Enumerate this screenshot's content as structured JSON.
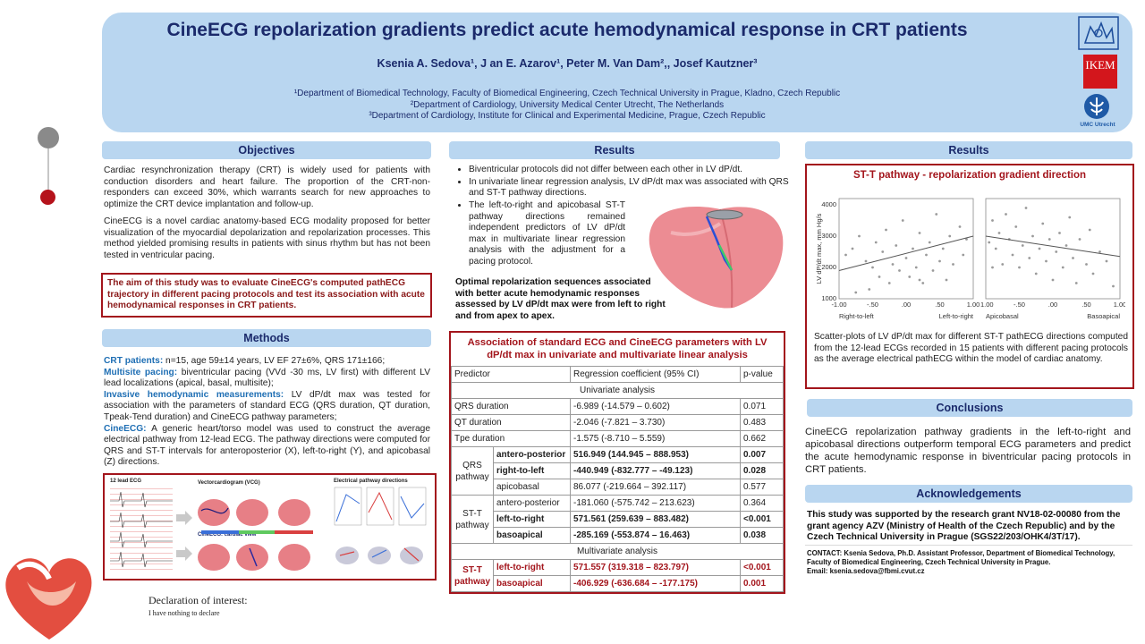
{
  "header": {
    "title": "CineECG repolarization gradients predict acute hemodynamical response in CRT patients",
    "authors": "Ksenia A. Sedova¹, J an E. Azarov¹,   Peter M. Van Dam²,, Josef Kautzner³",
    "affiliations": [
      "¹Department of Biomedical Technology, Faculty of Biomedical Engineering, Czech Technical University in Prague, Kladno, Czech Republic",
      "²Department of Cardiology, University Medical Center Utrecht, The Netherlands",
      "³Department of Cardiology, Institute for Clinical and Experimental Medicine, Prague, Czech Republic"
    ],
    "logos": {
      "ikem": "IKEM",
      "umc": "UMC Utrecht",
      "ctu_icon": "lion-crest-icon",
      "umc_icon": "umc-tree-icon"
    }
  },
  "objectives": {
    "heading": "Objectives",
    "p1": "Cardiac resynchronization therapy (CRT) is widely used for patients with conduction disorders and heart failure. The proportion of the CRT-non-responders can exceed 30%, which warrants search for new approaches to optimize the CRT device implantation and follow-up.",
    "p2": "CineECG is a novel cardiac anatomy-based ECG modality proposed for better visualization of the myocardial depolarization and repolarization processes. This method yielded promising results in patients with sinus rhythm but has not been tested in ventricular pacing.",
    "aim": "The aim of this study was to evaluate CineECG's computed pathECG trajectory in different pacing protocols and test its association with acute hemodynamical responses in CRT patients."
  },
  "methods": {
    "heading": "Methods",
    "items": [
      {
        "key": "CRT patients:",
        "text": " n=15, age 59±14 years, LV EF 27±6%, QRS 171±166;"
      },
      {
        "key": "Multisite pacing:",
        "text": " biventricular pacing (VVd -30 ms, LV first) with different LV lead localizations (apical, basal, multisite);"
      },
      {
        "key": "Invasive hemodynamic measurements:",
        "text": " LV dP/dt max was tested for association with the parameters of standard ECG (QRS duration, QT duration, Tpeak-Tend duration) and CineECG pathway parameters;"
      },
      {
        "key": "CineECG:",
        "text": " A generic heart/torso model was used to construct the average electrical pathway from 12-lead ECG. The pathway directions were computed for QRS and ST-T intervals for anteroposterior (X), left-to-right (Y), and apicobasal (Z) directions."
      }
    ],
    "figure": {
      "ecg_label": "12 lead ECG",
      "vcg_label": "Vectorcardiogram (VCG)",
      "path_label": "Electrical pathway directions",
      "cine_label": "CineECG: cardiac view"
    }
  },
  "declaration": {
    "title": "Declaration of interest:",
    "text": "I have nothing to declare"
  },
  "results_mid": {
    "heading": "Results",
    "bullets": [
      "Biventricular protocols did not differ between each other in LV dP/dt.",
      "In univariate linear regression analysis, LV dP/dt max was associated with QRS and ST-T pathway directions.",
      "The left-to-right and apicobasal ST-T pathway directions remained independent predictors of LV dP/dt max in multivariate linear regression analysis with the adjustment for a pacing protocol."
    ],
    "optimal": "Optimal repolarization sequences associated with better acute hemodynamic responses assessed by LV dP/dt max were from left to right and from apex to apex."
  },
  "table": {
    "title": "Association of standard ECG and CineECG parameters with LV dP/dt max in univariate and multivariate linear analysis",
    "headers": [
      "Predictor",
      "Regression coefficient (95% CI)",
      "p-value"
    ],
    "univariate_label": "Univariate analysis",
    "multivariate_label": "Multivariate analysis",
    "simple_rows": [
      {
        "name": "QRS duration",
        "coef": "-6.989 (-14.579 – 0.602)",
        "p": "0.071"
      },
      {
        "name": "QT duration",
        "coef": "-2.046 (-7.821 – 3.730)",
        "p": "0.483"
      },
      {
        "name": "Tpe duration",
        "coef": "-1.575 (-8.710 – 5.559)",
        "p": "0.662"
      }
    ],
    "qrs_group": "QRS pathway",
    "qrs_rows": [
      {
        "name": "antero-posterior",
        "coef": "516.949 (144.945 – 888.953)",
        "p": "0.007"
      },
      {
        "name": "right-to-left",
        "coef": "-440.949 (-832.777 – -49.123)",
        "p": "0.028"
      },
      {
        "name": "apicobasal",
        "coef": "86.077 (-219.664 – 392.117)",
        "p": "0.577"
      }
    ],
    "stt_group": "ST-T pathway",
    "stt_rows": [
      {
        "name": "antero-posterior",
        "coef": "-181.060 (-575.742 – 213.623)",
        "p": "0.364"
      },
      {
        "name": "left-to-right",
        "coef": "571.561 (259.639 – 883.482)",
        "p": "<0.001"
      },
      {
        "name": "basoapical",
        "coef": "-285.169 (-553.874 – 16.463)",
        "p": "0.038"
      }
    ],
    "multi_group": "ST-T pathway",
    "multi_rows": [
      {
        "name": "left-to-right",
        "coef": "571.557 (319.318 – 823.797)",
        "p": "<0.001"
      },
      {
        "name": "basoapical",
        "coef": "-406.929 (-636.684 – -177.175)",
        "p": "0.001"
      }
    ]
  },
  "results_right": {
    "heading": "Results",
    "chart_title": "ST-T pathway - repolarization gradient direction",
    "caption": "Scatter-plots of LV dP/dt max for different ST-T pathECG directions computed from the 12-lead ECGs recorded in 15 patients with different pacing protocols as the average electrical pathECG within the model of cardiac anatomy."
  },
  "chart_data": [
    {
      "type": "scatter",
      "ylabel": "LV dP/dt max, mm Hg/s",
      "xlabel_left": "Right-to-left",
      "xlabel_right": "Left-to-right",
      "xlim": [
        -1.0,
        1.0
      ],
      "ylim": [
        1000,
        4200
      ],
      "xticks": [
        "-1.00",
        "-.50",
        ".00",
        ".50",
        "1.00"
      ],
      "yticks": [
        "1000",
        "2000",
        "3000",
        "4000"
      ],
      "trend": [
        [
          -1.0,
          1900
        ],
        [
          1.0,
          3000
        ]
      ],
      "points": [
        [
          -0.9,
          2400
        ],
        [
          -0.8,
          2600
        ],
        [
          -0.7,
          3000
        ],
        [
          -0.6,
          2200
        ],
        [
          -0.55,
          1300
        ],
        [
          -0.5,
          2000
        ],
        [
          -0.45,
          2800
        ],
        [
          -0.4,
          1700
        ],
        [
          -0.35,
          2500
        ],
        [
          -0.3,
          3200
        ],
        [
          -0.25,
          1500
        ],
        [
          -0.2,
          2100
        ],
        [
          -0.15,
          2700
        ],
        [
          -0.1,
          1900
        ],
        [
          -0.05,
          3500
        ],
        [
          0.0,
          2300
        ],
        [
          0.05,
          1700
        ],
        [
          0.1,
          2600
        ],
        [
          0.15,
          2000
        ],
        [
          0.2,
          3100
        ],
        [
          0.25,
          1500
        ],
        [
          0.3,
          2400
        ],
        [
          0.35,
          2800
        ],
        [
          0.4,
          1900
        ],
        [
          0.45,
          3700
        ],
        [
          0.5,
          2200
        ],
        [
          0.55,
          2600
        ],
        [
          0.6,
          1600
        ],
        [
          0.65,
          3000
        ],
        [
          0.7,
          2100
        ],
        [
          0.8,
          3300
        ],
        [
          0.85,
          2400
        ],
        [
          0.9,
          2900
        ],
        [
          -0.75,
          1200
        ],
        [
          0.2,
          1600
        ]
      ]
    },
    {
      "type": "scatter",
      "ylabel": "",
      "xlabel_left": "Apicobasal",
      "xlabel_right": "Basoapical",
      "xlim": [
        -1.0,
        1.0
      ],
      "ylim": [
        1000,
        4200
      ],
      "xticks": [
        "-1.00",
        "-.50",
        ".00",
        ".50",
        "1.00"
      ],
      "yticks": [
        "1000",
        "2000",
        "3000",
        "4000"
      ],
      "trend": [
        [
          -1.0,
          3000
        ],
        [
          1.0,
          2350
        ]
      ],
      "points": [
        [
          -0.95,
          2800
        ],
        [
          -0.9,
          3500
        ],
        [
          -0.85,
          2600
        ],
        [
          -0.8,
          3100
        ],
        [
          -0.75,
          2100
        ],
        [
          -0.7,
          3700
        ],
        [
          -0.65,
          2900
        ],
        [
          -0.6,
          2400
        ],
        [
          -0.55,
          3300
        ],
        [
          -0.5,
          2000
        ],
        [
          -0.45,
          2700
        ],
        [
          -0.4,
          3900
        ],
        [
          -0.35,
          2300
        ],
        [
          -0.3,
          3000
        ],
        [
          -0.25,
          1800
        ],
        [
          -0.2,
          2600
        ],
        [
          -0.15,
          3400
        ],
        [
          -0.1,
          2200
        ],
        [
          -0.05,
          2900
        ],
        [
          0.0,
          1600
        ],
        [
          0.05,
          2500
        ],
        [
          0.1,
          3100
        ],
        [
          0.15,
          2000
        ],
        [
          0.2,
          2700
        ],
        [
          0.3,
          2300
        ],
        [
          0.35,
          1500
        ],
        [
          0.4,
          2900
        ],
        [
          0.5,
          2100
        ],
        [
          0.55,
          3200
        ],
        [
          0.6,
          1800
        ],
        [
          0.7,
          2500
        ],
        [
          0.8,
          2200
        ],
        [
          0.9,
          1400
        ],
        [
          -0.9,
          2000
        ],
        [
          0.25,
          3600
        ]
      ]
    }
  ],
  "conclusions": {
    "heading": "Conclusions",
    "text": "CineECG repolarization pathway gradients in the left-to-right and apicobasal directions outperform temporal ECG parameters and predict the acute hemodynamic response in biventricular pacing protocols in CRT patients."
  },
  "acknowledgements": {
    "heading": "Acknowledgements",
    "text": "This study was supported by the research grant NV18-02-00080 from the grant agency AZV (Ministry of Health of the Czech Republic) and by the Czech Technical University in Prague (SGS22/203/OHK4/3T/17).",
    "contact": "CONTACT: Ksenia Sedova, Ph.D.  Assistant Professor, Department of Biomedical Technology, Faculty of Biomedical Engineering, Czech Technical University in Prague.",
    "email": "Email: ksenia.sedova@fbmi.cvut.cz"
  },
  "colors": {
    "header_bg": "#b9d6f0",
    "title": "#1b2a6b",
    "accent_red": "#a3151c",
    "keyword_blue": "#1f6fb4"
  }
}
